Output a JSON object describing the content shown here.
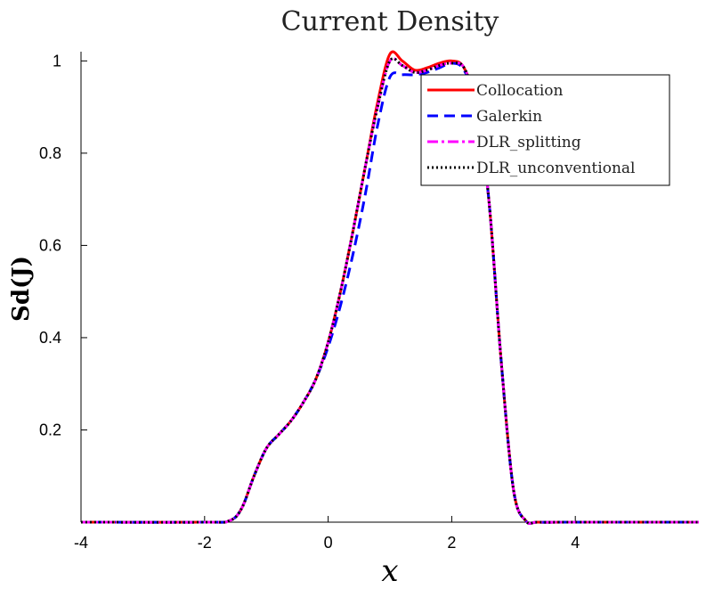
{
  "chart_data": {
    "type": "line",
    "title": "Current Density",
    "xlabel": "x",
    "ylabel": "Sd(J)",
    "xlim": [
      -4,
      6
    ],
    "ylim": [
      0,
      1.02
    ],
    "x_ticks": [
      -4,
      -2,
      0,
      2,
      4
    ],
    "x_tick_labels": [
      "-4",
      "-2",
      "0",
      "2",
      "4"
    ],
    "y_ticks": [
      0.2,
      0.4,
      0.6,
      0.8,
      1
    ],
    "y_tick_labels": [
      "0.2",
      "0.4",
      "0.6",
      "0.8",
      "1"
    ],
    "grid": false,
    "legend_position": "top-right",
    "x": [
      -4,
      -2,
      -1.6,
      -1.4,
      -1.2,
      -1.0,
      -0.8,
      -0.6,
      -0.4,
      -0.2,
      0,
      0.2,
      0.4,
      0.6,
      0.8,
      1.0,
      1.2,
      1.4,
      1.6,
      1.8,
      2.0,
      2.2,
      2.4,
      2.6,
      2.8,
      3.0,
      3.2,
      3.4,
      4,
      6
    ],
    "series": [
      {
        "name": "Collocation",
        "color": "#ff0000",
        "dash": "solid",
        "values": [
          0,
          0,
          0.003,
          0.03,
          0.1,
          0.16,
          0.19,
          0.22,
          0.26,
          0.31,
          0.39,
          0.5,
          0.63,
          0.77,
          0.91,
          1.015,
          1.0,
          0.98,
          0.985,
          0.995,
          1.0,
          0.985,
          0.9,
          0.7,
          0.35,
          0.07,
          0.003,
          0,
          0,
          0
        ]
      },
      {
        "name": "Galerkin",
        "color": "#0000ff",
        "dash": "dashed",
        "values": [
          0,
          0,
          0.003,
          0.03,
          0.1,
          0.16,
          0.19,
          0.22,
          0.26,
          0.31,
          0.38,
          0.47,
          0.58,
          0.71,
          0.86,
          0.965,
          0.97,
          0.97,
          0.975,
          0.985,
          0.995,
          0.98,
          0.9,
          0.7,
          0.35,
          0.07,
          0.003,
          0,
          0,
          0
        ]
      },
      {
        "name": "DLR_splitting",
        "color": "#ff00ff",
        "dash": "dashdot",
        "values": [
          0,
          0,
          0.003,
          0.03,
          0.1,
          0.16,
          0.19,
          0.22,
          0.26,
          0.31,
          0.39,
          0.5,
          0.63,
          0.77,
          0.9,
          1.0,
          0.99,
          0.975,
          0.98,
          0.99,
          0.995,
          0.985,
          0.9,
          0.7,
          0.35,
          0.07,
          0.003,
          0,
          0,
          0
        ]
      },
      {
        "name": "DLR_unconventional",
        "color": "#000000",
        "dash": "dotted",
        "values": [
          0,
          0,
          0.003,
          0.03,
          0.1,
          0.16,
          0.19,
          0.22,
          0.26,
          0.31,
          0.39,
          0.5,
          0.63,
          0.77,
          0.9,
          1.0,
          0.99,
          0.975,
          0.98,
          0.99,
          0.995,
          0.985,
          0.9,
          0.7,
          0.35,
          0.07,
          0.003,
          0,
          0,
          0
        ]
      }
    ]
  }
}
